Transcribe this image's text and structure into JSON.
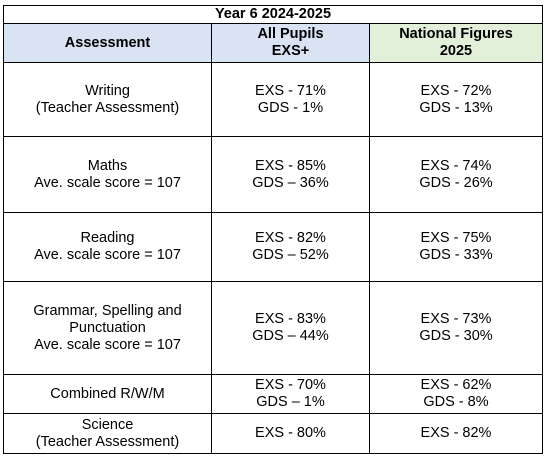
{
  "table": {
    "title": "Year 6 2024-2025",
    "headers": [
      {
        "lines": [
          "Assessment"
        ],
        "bg": "#dae3f3"
      },
      {
        "lines": [
          "All Pupils",
          "EXS+"
        ],
        "bg": "#dae3f3"
      },
      {
        "lines": [
          "National Figures",
          "2025"
        ],
        "bg": "#e2efd9"
      }
    ],
    "rows": [
      {
        "assessment": [
          "Writing",
          "(Teacher Assessment)"
        ],
        "pupils": [
          "EXS - 71%",
          "GDS - 1%"
        ],
        "national": [
          "EXS - 72%",
          "GDS - 13%"
        ]
      },
      {
        "assessment": [
          "Maths",
          "Ave. scale score = 107"
        ],
        "pupils": [
          "EXS - 85%",
          "GDS – 36%"
        ],
        "national": [
          "EXS - 74%",
          "GDS - 26%"
        ]
      },
      {
        "assessment": [
          "Reading",
          "Ave. scale score = 107"
        ],
        "pupils": [
          "EXS - 82%",
          "GDS – 52%"
        ],
        "national": [
          "EXS - 75%",
          "GDS - 33%"
        ]
      },
      {
        "assessment": [
          "Grammar, Spelling and",
          "Punctuation",
          "Ave. scale score = 107"
        ],
        "pupils": [
          "EXS - 83%",
          "GDS – 44%"
        ],
        "national": [
          "EXS - 73%",
          "GDS - 30%"
        ]
      },
      {
        "assessment": [
          "Combined R/W/M"
        ],
        "pupils": [
          "EXS - 70%",
          "GDS – 1%"
        ],
        "national": [
          "EXS - 62%",
          "GDS - 8%"
        ]
      },
      {
        "assessment": [
          "Science",
          "(Teacher Assessment)"
        ],
        "pupils": [
          "EXS - 80%"
        ],
        "national": [
          "EXS - 82%"
        ]
      }
    ]
  }
}
